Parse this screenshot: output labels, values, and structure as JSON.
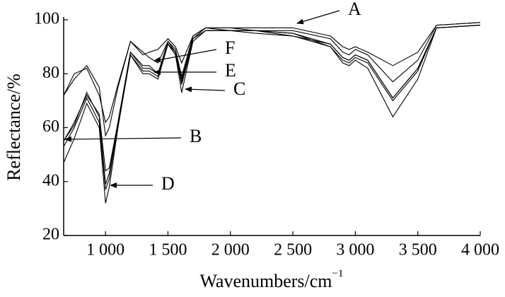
{
  "chart_data": {
    "type": "line",
    "ylabel": "Reflectance/%",
    "xlabel": "Wavenumbers/cm",
    "xlabel_sup": "−1",
    "xlim": [
      665,
      4000
    ],
    "ylim": [
      20,
      100
    ],
    "xticks": [
      {
        "value": 1000,
        "label": "1 000"
      },
      {
        "value": 1500,
        "label": "1 500"
      },
      {
        "value": 2000,
        "label": "2 000"
      },
      {
        "value": 2500,
        "label": "2 500"
      },
      {
        "value": 3000,
        "label": "3 000"
      },
      {
        "value": 3500,
        "label": "3 500"
      },
      {
        "value": 4000,
        "label": "4 000"
      }
    ],
    "yticks": [
      20,
      40,
      60,
      80,
      100
    ],
    "grid": false,
    "x": [
      665,
      750,
      850,
      950,
      1000,
      1030,
      1100,
      1200,
      1300,
      1350,
      1420,
      1500,
      1560,
      1610,
      1700,
      1800,
      2000,
      2200,
      2500,
      2800,
      2900,
      2950,
      3000,
      3100,
      3300,
      3500,
      3650,
      4000
    ],
    "series": [
      {
        "name": "A",
        "color": "#000000",
        "values": [
          72,
          78,
          83,
          75,
          57,
          60,
          75,
          92,
          87,
          88,
          89,
          93,
          90,
          84,
          94,
          97,
          97,
          97,
          97,
          94,
          90,
          89,
          90,
          88,
          83,
          88,
          98,
          99
        ]
      },
      {
        "name": "B",
        "color": "#000000",
        "values": [
          55,
          62,
          72,
          65,
          44,
          45,
          62,
          88,
          82,
          82,
          80,
          91,
          88,
          78,
          93,
          96,
          96,
          96,
          95,
          91,
          86,
          85,
          87,
          85,
          71,
          82,
          97,
          98
        ]
      },
      {
        "name": "C",
        "color": "#000000",
        "values": [
          47,
          56,
          69,
          60,
          32,
          38,
          60,
          87,
          80,
          80,
          78,
          91,
          87,
          73,
          92,
          96,
          96,
          96,
          95,
          90,
          84,
          83,
          85,
          82,
          64,
          78,
          97,
          98
        ]
      },
      {
        "name": "D",
        "color": "#000000",
        "values": [
          53,
          60,
          71,
          62,
          37,
          41,
          61,
          87,
          81,
          81,
          79,
          91,
          87,
          76,
          92,
          96,
          96,
          96,
          94,
          90,
          85,
          84,
          86,
          84,
          70,
          81,
          97,
          98
        ]
      },
      {
        "name": "E",
        "color": "#000000",
        "values": [
          55,
          61,
          73,
          64,
          39,
          43,
          62,
          88,
          83,
          83,
          80,
          92,
          88,
          77,
          93,
          97,
          96,
          95,
          94,
          91,
          86,
          85,
          87,
          85,
          71,
          82,
          97,
          98
        ]
      },
      {
        "name": "F",
        "color": "#000000",
        "values": [
          72,
          80,
          82,
          72,
          62,
          64,
          76,
          92,
          88,
          86,
          84,
          92,
          89,
          79,
          94,
          97,
          97,
          96,
          96,
          93,
          88,
          87,
          89,
          87,
          77,
          85,
          98,
          99
        ]
      }
    ]
  }
}
